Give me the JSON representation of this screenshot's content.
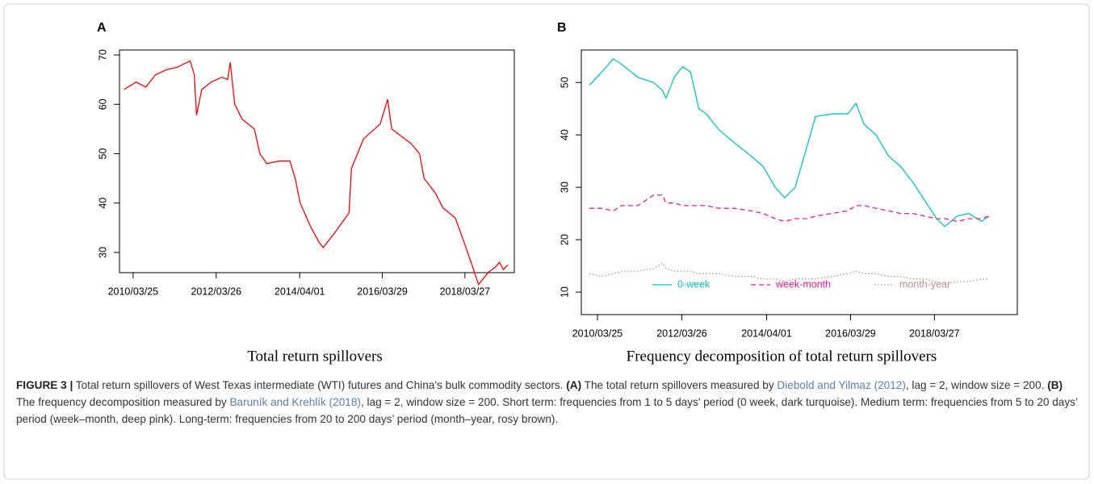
{
  "chart_data": [
    {
      "type": "line",
      "panel": "A",
      "subtitle": "Total return spillovers",
      "color": "#ff0000",
      "x": [
        "2010/01/05",
        "2010/04/20",
        "2010/07/15",
        "2010/10/10",
        "2011/01/10",
        "2011/04/15",
        "2011/08/10",
        "2011/09/15",
        "2011/10/05",
        "2011/11/20",
        "2012/02/10",
        "2012/05/15",
        "2012/07/05",
        "2012/07/28",
        "2012/09/05",
        "2012/11/10",
        "2013/02/25",
        "2013/04/15",
        "2013/06/15",
        "2013/10/01",
        "2014/01/05",
        "2014/02/20",
        "2014/04/05",
        "2014/07/10",
        "2014/09/20",
        "2014/10/25",
        "2015/02/05",
        "2015/06/10",
        "2015/07/01",
        "2015/10/15",
        "2016/03/10",
        "2016/05/15",
        "2016/06/20",
        "2016/12/10",
        "2017/02/20",
        "2017/04/01",
        "2017/07/10",
        "2017/09/15",
        "2018/01/01",
        "2018/03/20",
        "2018/05/20",
        "2018/07/25",
        "2018/10/20",
        "2018/12/20",
        "2019/01/25",
        "2019/03/01",
        "2019/04/10"
      ],
      "values": [
        63,
        64.5,
        63.5,
        66,
        67,
        67.5,
        68.8,
        66,
        57.8,
        63,
        64.5,
        65.5,
        65,
        68.5,
        60,
        57,
        55,
        50,
        48,
        48.5,
        48.5,
        45,
        40,
        35,
        32,
        31,
        34,
        38,
        47,
        53,
        56,
        61,
        55,
        52,
        50,
        45,
        42,
        39,
        37,
        32,
        28,
        23.5,
        26,
        27,
        28,
        26.5,
        27.5
      ],
      "xlim": [
        "2009/11/25",
        "2019/06/05"
      ],
      "xticks": [
        "2010/03/25",
        "2012/03/26",
        "2014/04/01",
        "2016/03/29",
        "2018/03/27"
      ],
      "ylim": [
        25.9,
        71
      ],
      "yticks": [
        30,
        40,
        50,
        60,
        70
      ]
    },
    {
      "type": "line",
      "panel": "B",
      "subtitle": "Frequency decomposition of total return spillovers",
      "legend": "bottom",
      "x": [
        "2010/01/15",
        "2010/05/01",
        "2010/08/10",
        "2010/10/20",
        "2011/03/10",
        "2011/07/25",
        "2011/10/10",
        "2011/11/10",
        "2012/01/20",
        "2012/04/01",
        "2012/06/10",
        "2012/08/20",
        "2012/10/25",
        "2013/02/10",
        "2013/06/25",
        "2013/11/15",
        "2014/03/01",
        "2014/06/15",
        "2014/09/05",
        "2014/12/05",
        "2015/03/20",
        "2015/05/30",
        "2015/10/20",
        "2016/03/05",
        "2016/05/15",
        "2016/07/25",
        "2016/11/05",
        "2017/02/20",
        "2017/06/05",
        "2017/09/20",
        "2018/01/01",
        "2018/04/15",
        "2018/06/25",
        "2018/10/10",
        "2019/01/20",
        "2019/05/10",
        "2019/07/15"
      ],
      "series": [
        {
          "name": "0-week",
          "color": "#00c5cd",
          "dash": "solid",
          "values": [
            49.5,
            52,
            54.5,
            53.5,
            51,
            50,
            48.5,
            47,
            51,
            53,
            52,
            45,
            44,
            41,
            38.5,
            36,
            34,
            30,
            28,
            30,
            38,
            43.5,
            44,
            44,
            46,
            42,
            40,
            36,
            34,
            31,
            27.5,
            24,
            22.5,
            24.5,
            25,
            23.5,
            24.5
          ]
        },
        {
          "name": "week-month",
          "color": "#ff1493",
          "dash": "dashed",
          "values": [
            26,
            26,
            25.5,
            26.5,
            26.5,
            28.5,
            28.5,
            27,
            27,
            26.5,
            26.5,
            26.5,
            26.5,
            26,
            26,
            25.5,
            25,
            24,
            23.5,
            24,
            24,
            24.5,
            25,
            25.5,
            26.5,
            26.5,
            26,
            25.5,
            25,
            25,
            24.5,
            24,
            24,
            23.5,
            24,
            24,
            24.5
          ]
        },
        {
          "name": "month-year",
          "color": "#bc8f8f",
          "dash": "dotted",
          "values": [
            13.5,
            13,
            13.5,
            14,
            14,
            14.5,
            15.5,
            14.5,
            14,
            14,
            14,
            13.5,
            13.5,
            13.5,
            13,
            13,
            12.5,
            12.5,
            12,
            12.5,
            12.5,
            12.5,
            13,
            13.5,
            14,
            13.5,
            13.5,
            13,
            13,
            12.5,
            12.5,
            12,
            11.5,
            12,
            12,
            12.5,
            12.5
          ]
        }
      ],
      "xlim": [
        "2009/11/05",
        "2020/03/15"
      ],
      "xticks": [
        "2010/03/25",
        "2012/03/26",
        "2014/04/01",
        "2016/03/29",
        "2018/03/27"
      ],
      "ylim": [
        5.7,
        56.2
      ],
      "yticks": [
        10,
        20,
        30,
        40,
        50
      ]
    }
  ],
  "caption": [
    "FIGURE 3 |",
    " Total return spillovers of West Texas intermediate (WTI) futures and China’s bulk commodity sectors. ",
    "(A)",
    " The total return spillovers measured by ",
    "Diebold and Yilmaz (2012)",
    ", lag = 2, window size = 200. ",
    "(B)",
    " The frequency decomposition measured by ",
    "Baruník and Krehlík (2018)",
    ", lag = 2, window size = 200. Short term: frequencies from 1 to 5 days’ period (0 week, dark turquoise). Medium term: frequencies from 5 to 20 days’ period (week–month, deep pink). Long-term: frequencies from 20 to 200 days’ period (month–year, rosy brown)."
  ]
}
